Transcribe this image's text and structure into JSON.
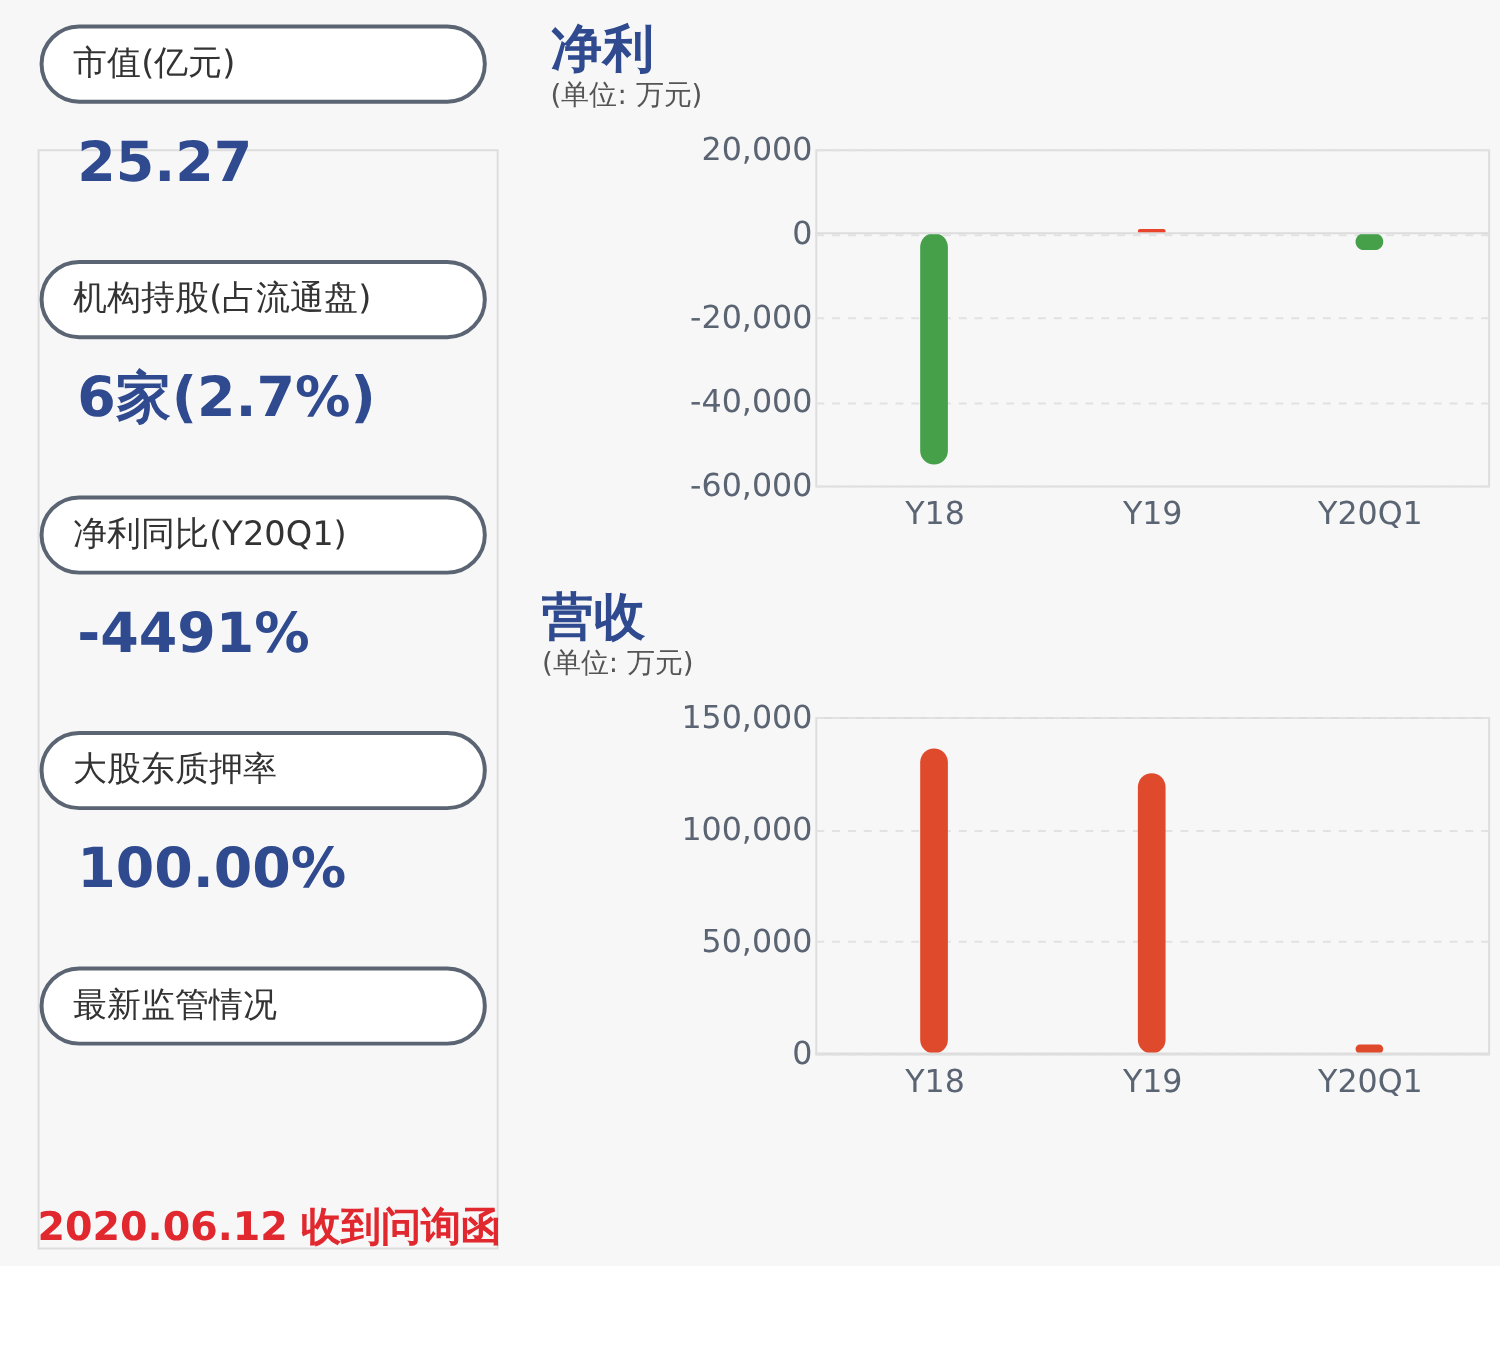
{
  "chart_data": [
    {
      "type": "other",
      "annotations": [
        "市值(亿元)",
        "25.27",
        "机构持股(占流通盘)",
        "6家(2.7%)",
        "净利同比(Y20Q1)",
        "-4491%",
        "大股东质押率",
        "100.00%",
        "最新监管情况",
        "2020.06.12 收到问询函"
      ]
    },
    {
      "type": "bar",
      "title": "净利",
      "subtitle": "(单位: 万元)",
      "categories": [
        "Y18",
        "Y19",
        "Y20Q1"
      ],
      "values": [
        -55000,
        1000,
        -4000
      ],
      "colors": [
        "#46a04a",
        "#e8452c",
        "#46a04a"
      ],
      "ylim": [
        -60000,
        20000
      ],
      "yticks": [
        {
          "value": -60000,
          "label": "-60,000"
        },
        {
          "value": -40000,
          "label": "-40,000"
        },
        {
          "value": -20000,
          "label": "-20,000"
        },
        0,
        {
          "value": 20000,
          "label": "20,000"
        }
      ],
      "grid": "y"
    },
    {
      "type": "bar",
      "title": "营收",
      "subtitle": "(单位: 万元)",
      "categories": [
        "Y18",
        "Y19",
        "Y20Q1"
      ],
      "values": [
        136000,
        125000,
        4000
      ],
      "colors": [
        "#e04a2c",
        "#e04a2c",
        "#e04a2c"
      ],
      "ylim": [
        0,
        150000
      ],
      "yticks": [
        0,
        {
          "value": 50000,
          "label": "50,000"
        },
        {
          "value": 100000,
          "label": "100,000"
        },
        {
          "value": 150000,
          "label": "150,000"
        }
      ],
      "grid": "y"
    }
  ]
}
